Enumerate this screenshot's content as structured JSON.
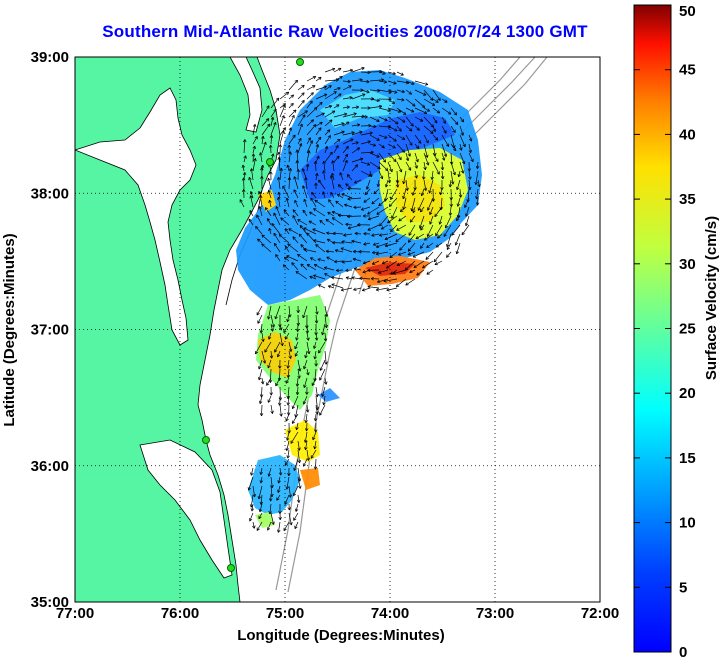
{
  "title": "Southern Mid-Atlantic Raw Velocities 2008/07/24 1300 GMT",
  "xaxis": {
    "label": "Longitude (Degrees:Minutes)",
    "ticks": [
      "77:00",
      "76:00",
      "75:00",
      "74:00",
      "73:00",
      "72:00"
    ],
    "range": [
      -77,
      -72
    ]
  },
  "yaxis": {
    "label": "Latitude (Degrees:Minutes)",
    "ticks": [
      "35:00",
      "36:00",
      "37:00",
      "38:00",
      "39:00"
    ],
    "range": [
      35,
      39
    ]
  },
  "colorbar": {
    "label": "Surface Velocity (cm/s)",
    "ticks": [
      "0",
      "5",
      "10",
      "15",
      "20",
      "25",
      "30",
      "35",
      "40",
      "45",
      "50"
    ],
    "range": [
      0,
      50
    ],
    "colormap": "jet"
  },
  "colors": {
    "land": "#55f5a3",
    "coast": "#000000",
    "bathymetry": "#999999",
    "title": "#0000ff"
  },
  "grid": "dotted"
}
